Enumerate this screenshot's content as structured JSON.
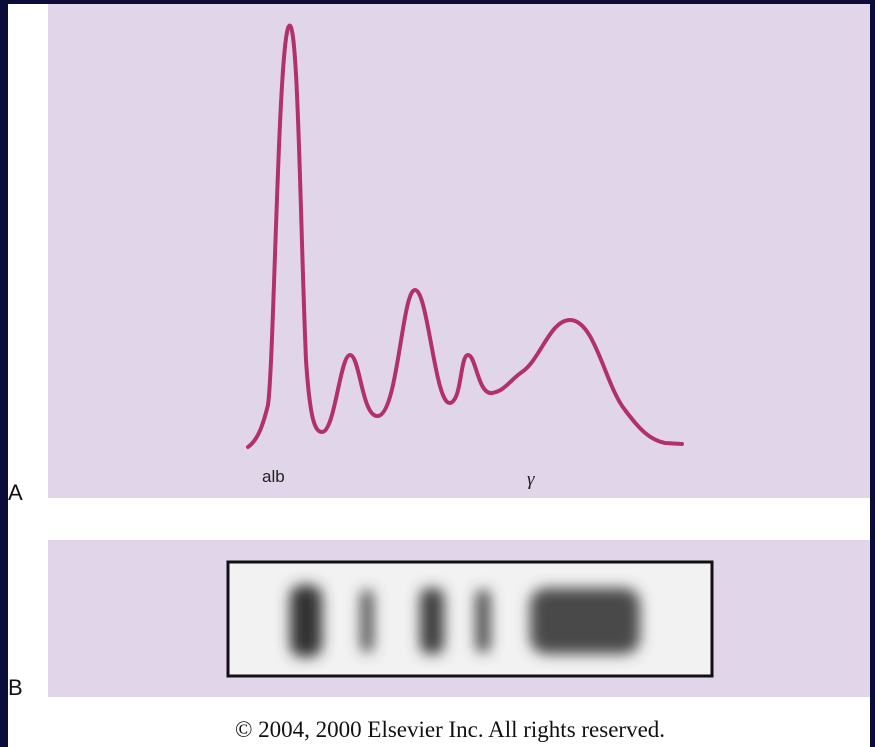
{
  "panels": [
    {
      "label": "A",
      "peak_labels": [
        "alb",
        "γ"
      ]
    },
    {
      "label": "B"
    }
  ],
  "footer": "© 2004, 2000 Elsevier Inc. All rights reserved."
}
